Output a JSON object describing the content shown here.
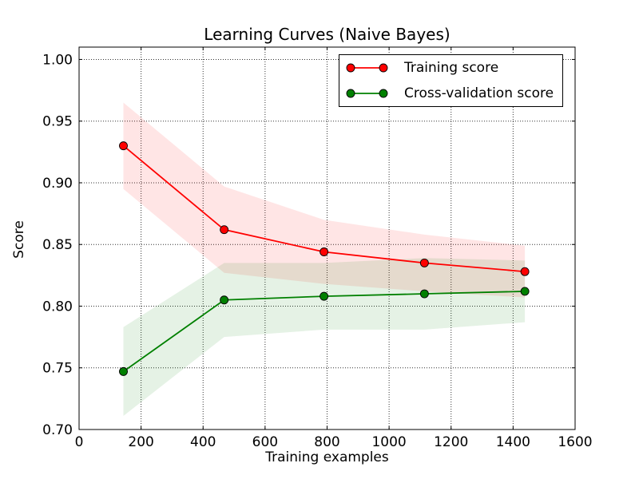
{
  "figure": {
    "background": "#ffffff",
    "title": "Learning Curves (Naive Bayes)",
    "xlabel": "Training examples",
    "ylabel": "Score"
  },
  "chart_data": {
    "type": "line",
    "title": "Learning Curves (Naive Bayes)",
    "xlabel": "Training examples",
    "ylabel": "Score",
    "xlim": [
      0,
      1600
    ],
    "ylim": [
      0.7,
      1.01
    ],
    "xticks": [
      0,
      200,
      400,
      600,
      800,
      1000,
      1200,
      1400,
      1600
    ],
    "yticks": [
      0.7,
      0.75,
      0.8,
      0.85,
      0.9,
      0.95,
      1.0
    ],
    "grid": true,
    "grid_style": "dotted",
    "legend_position": "upper right",
    "x": [
      143,
      468,
      790,
      1114,
      1438
    ],
    "series": [
      {
        "name": "Training score",
        "color": "#ff0000",
        "values": [
          0.93,
          0.862,
          0.844,
          0.835,
          0.828
        ],
        "std": [
          0.035,
          0.035,
          0.026,
          0.023,
          0.021
        ],
        "band_alpha": 0.1
      },
      {
        "name": "Cross-validation score",
        "color": "#008000",
        "values": [
          0.747,
          0.805,
          0.808,
          0.81,
          0.812
        ],
        "std": [
          0.036,
          0.03,
          0.027,
          0.029,
          0.025
        ],
        "band_alpha": 0.1
      }
    ],
    "marker": "o",
    "marker_edge_color": "#000000",
    "spine_color": "#000000"
  }
}
